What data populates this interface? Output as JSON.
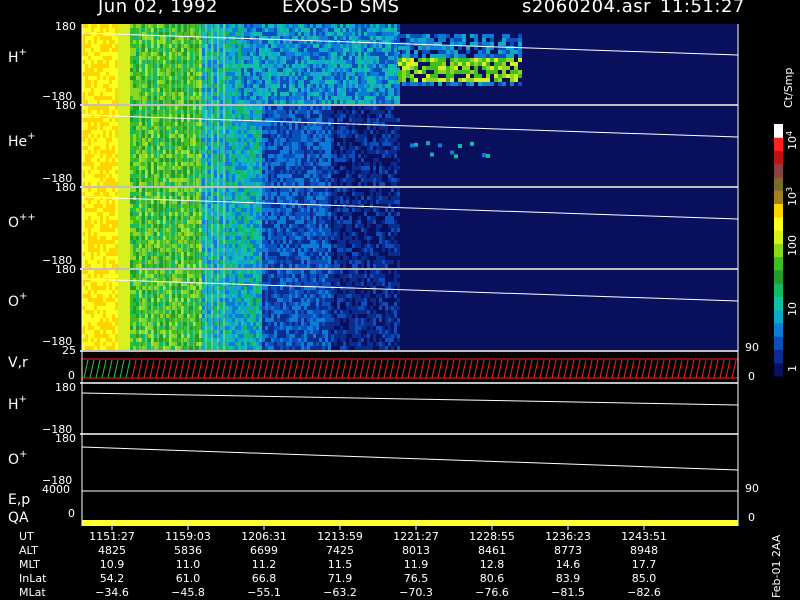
{
  "header": {
    "date": "Jun 02, 1992",
    "instrument": "EXOS-D SMS",
    "file": "s2060204.asr",
    "time": "11:51:27"
  },
  "panels": [
    {
      "label": "H",
      "sup": "+",
      "top": "180",
      "bottom": "−180"
    },
    {
      "label": "He",
      "sup": "+",
      "top": "180",
      "bottom": "−180"
    },
    {
      "label": "O",
      "sup": "++",
      "top": "180",
      "bottom": "−180"
    },
    {
      "label": "O",
      "sup": "+",
      "top": "180",
      "bottom": "−180"
    },
    {
      "label": "V,r",
      "sup": "",
      "top": "25",
      "bottom": "0"
    },
    {
      "label": "H",
      "sup": "+",
      "top": "180",
      "bottom": "−180"
    },
    {
      "label": "O",
      "sup": "+",
      "top": "180",
      "bottom": "−180"
    },
    {
      "label": "E,p",
      "sup": "",
      "top": "4000",
      "bottom": "0"
    },
    {
      "label": "QA",
      "sup": "",
      "top": "",
      "bottom": "0"
    }
  ],
  "right_ticks": {
    "vr_90": "90",
    "vr_0": "0",
    "ep_90": "90",
    "ep_0": "0",
    "qa_0": "0"
  },
  "colorbar": {
    "unit": "Ct/Smp",
    "labels": {
      "l1": "1",
      "l10": "10",
      "l100": "100",
      "l1e3_base": "10",
      "l1e3_exp": "3",
      "l1e4_base": "10",
      "l1e4_exp": "4"
    },
    "colors": [
      "#08105e",
      "#0a2c8e",
      "#0b4fbe",
      "#0d7bd8",
      "#0ea9c8",
      "#12c0a8",
      "#16b860",
      "#1f9e2a",
      "#3fbe20",
      "#8ad820",
      "#d8f020",
      "#ffff20",
      "#ffd400",
      "#a08020",
      "#7a6a28",
      "#884040",
      "#c01010",
      "#ff2020",
      "#ffffff"
    ]
  },
  "chart_data": {
    "type": "heatmap",
    "title": "Jun 02, 1992   EXOS-D SMS   s2060204.asr  11:51:27",
    "x_ticks": [
      "1151:27",
      "1159:03",
      "1206:31",
      "1213:59",
      "1221:27",
      "1228:55",
      "1236:23",
      "1243:51"
    ],
    "ion_panels": [
      "H+",
      "He+",
      "O++",
      "O+"
    ],
    "ylim": [
      -180,
      180
    ],
    "color_scale": {
      "type": "log",
      "range": [
        1,
        10000
      ],
      "unit": "Ct/Smp"
    }
  },
  "ephemeris": {
    "rows": [
      {
        "name": "UT",
        "values": [
          "1151:27",
          "1159:03",
          "1206:31",
          "1213:59",
          "1221:27",
          "1228:55",
          "1236:23",
          "1243:51"
        ]
      },
      {
        "name": "ALT",
        "values": [
          "4825",
          "5836",
          "6699",
          "7425",
          "8013",
          "8461",
          "8773",
          "8948"
        ]
      },
      {
        "name": "MLT",
        "values": [
          "10.9",
          "11.0",
          "11.2",
          "11.5",
          "11.9",
          "12.8",
          "14.6",
          "17.7"
        ]
      },
      {
        "name": "InLat",
        "values": [
          "54.2",
          "61.0",
          "66.8",
          "71.9",
          "76.5",
          "80.6",
          "83.9",
          "85.0"
        ]
      },
      {
        "name": "MLat",
        "values": [
          "−34.6",
          "−45.8",
          "−55.1",
          "−63.2",
          "−70.3",
          "−76.6",
          "−81.5",
          "−82.6"
        ]
      }
    ]
  },
  "side_label": "Feb-01 2AA",
  "colors": {
    "background": "#000000",
    "plot_bg": "#08105e",
    "qa_bar": "#ffff30",
    "vel_red": "#ff2020",
    "vel_green": "#20d040",
    "line": "#ffffff"
  }
}
